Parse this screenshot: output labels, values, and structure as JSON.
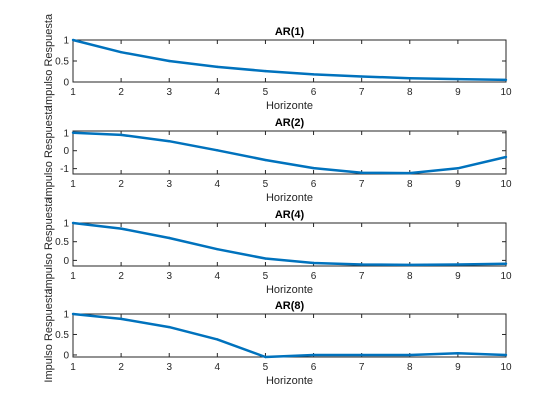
{
  "figure": {
    "line_color": "#0072BD"
  },
  "chart_data": [
    {
      "type": "line",
      "title": "AR(1)",
      "xlabel": "Horizonte",
      "ylabel": "Impulso Respuesta",
      "xlim": [
        1,
        10
      ],
      "ylim": [
        0,
        1
      ],
      "xticks": [
        1,
        2,
        3,
        4,
        5,
        6,
        7,
        8,
        9,
        10
      ],
      "yticks": [
        0,
        0.5,
        1
      ],
      "ytick_labels": [
        "0",
        "0.5",
        "1"
      ],
      "x": [
        1,
        2,
        3,
        4,
        5,
        6,
        7,
        8,
        9,
        10
      ],
      "values": [
        1.0,
        0.71,
        0.5,
        0.36,
        0.26,
        0.18,
        0.13,
        0.09,
        0.07,
        0.05
      ]
    },
    {
      "type": "line",
      "title": "AR(2)",
      "xlabel": "Horizonte",
      "ylabel": "Impulso Respuesta",
      "xlim": [
        1,
        10
      ],
      "ylim": [
        -1.3,
        1.1
      ],
      "xticks": [
        1,
        2,
        3,
        4,
        5,
        6,
        7,
        8,
        9,
        10
      ],
      "yticks": [
        -1,
        0,
        1
      ],
      "ytick_labels": [
        "-1",
        "0",
        "1"
      ],
      "x": [
        1,
        2,
        3,
        4,
        5,
        6,
        7,
        8,
        9,
        10
      ],
      "values": [
        1.0,
        0.88,
        0.53,
        0.02,
        -0.52,
        -0.97,
        -1.23,
        -1.25,
        -0.98,
        -0.35
      ]
    },
    {
      "type": "line",
      "title": "AR(4)",
      "xlabel": "Horizonte",
      "ylabel": "Impulso Respuesta",
      "xlim": [
        1,
        10
      ],
      "ylim": [
        -0.15,
        1
      ],
      "xticks": [
        1,
        2,
        3,
        4,
        5,
        6,
        7,
        8,
        9,
        10
      ],
      "yticks": [
        0,
        0.5,
        1
      ],
      "ytick_labels": [
        "0",
        "0.5",
        "1"
      ],
      "x": [
        1,
        2,
        3,
        4,
        5,
        6,
        7,
        8,
        9,
        10
      ],
      "values": [
        1.0,
        0.85,
        0.6,
        0.3,
        0.05,
        -0.07,
        -0.11,
        -0.12,
        -0.11,
        -0.09
      ]
    },
    {
      "type": "line",
      "title": "AR(8)",
      "xlabel": "Horizonte",
      "ylabel": "Impulso Respuesta",
      "xlim": [
        1,
        10
      ],
      "ylim": [
        -0.05,
        1
      ],
      "xticks": [
        1,
        2,
        3,
        4,
        5,
        6,
        7,
        8,
        9,
        10
      ],
      "yticks": [
        0,
        0.5,
        1
      ],
      "ytick_labels": [
        "0",
        "0.5",
        "1"
      ],
      "x": [
        1,
        2,
        3,
        4,
        5,
        6,
        7,
        8,
        9,
        10
      ],
      "values": [
        1.0,
        0.88,
        0.68,
        0.38,
        -0.05,
        0.0,
        0.0,
        0.0,
        0.04,
        0.0
      ]
    }
  ]
}
